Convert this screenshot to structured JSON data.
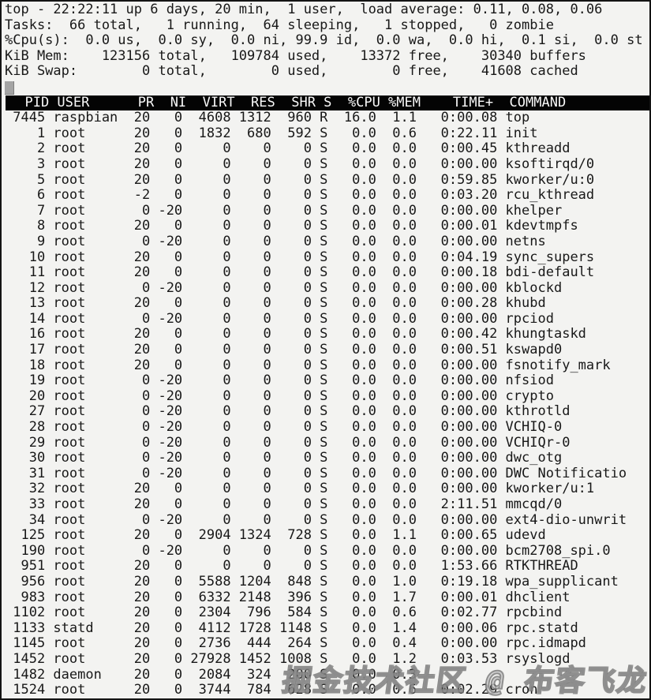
{
  "terminal": {
    "summary_lines": [
      "top - 22:22:11 up 6 days, 20 min,  1 user,  load average: 0.11, 0.08, 0.06",
      "Tasks:  66 total,   1 running,  64 sleeping,   1 stopped,   0 zombie",
      "%Cpu(s):  0.0 us,  0.0 sy,  0.0 ni, 99.9 id,  0.0 wa,  0.0 hi,  0.1 si,  0.0 st",
      "KiB Mem:    123156 total,   109784 used,    13372 free,    30340 buffers",
      "KiB Swap:        0 total,        0 used,        0 free,    41608 cached"
    ],
    "table": {
      "header_line": "  PID USER      PR  NI  VIRT  RES  SHR S  %CPU %MEM    TIME+  COMMAND",
      "columns": [
        "PID",
        "USER",
        "PR",
        "NI",
        "VIRT",
        "RES",
        "SHR",
        "S",
        "%CPU",
        "%MEM",
        "TIME+",
        "COMMAND"
      ],
      "rows": [
        [
          "7445",
          "raspbian",
          "20",
          "0",
          "4608",
          "1312",
          "960",
          "R",
          "16.0",
          "1.1",
          "0:00.08",
          "top"
        ],
        [
          "1",
          "root",
          "20",
          "0",
          "1832",
          "680",
          "592",
          "S",
          "0.0",
          "0.6",
          "0:22.11",
          "init"
        ],
        [
          "2",
          "root",
          "20",
          "0",
          "0",
          "0",
          "0",
          "S",
          "0.0",
          "0.0",
          "0:00.45",
          "kthreadd"
        ],
        [
          "3",
          "root",
          "20",
          "0",
          "0",
          "0",
          "0",
          "S",
          "0.0",
          "0.0",
          "0:00.00",
          "ksoftirqd/0"
        ],
        [
          "5",
          "root",
          "20",
          "0",
          "0",
          "0",
          "0",
          "S",
          "0.0",
          "0.0",
          "0:59.85",
          "kworker/u:0"
        ],
        [
          "6",
          "root",
          "-2",
          "0",
          "0",
          "0",
          "0",
          "S",
          "0.0",
          "0.0",
          "0:03.20",
          "rcu_kthread"
        ],
        [
          "7",
          "root",
          "0",
          "-20",
          "0",
          "0",
          "0",
          "S",
          "0.0",
          "0.0",
          "0:00.00",
          "khelper"
        ],
        [
          "8",
          "root",
          "20",
          "0",
          "0",
          "0",
          "0",
          "S",
          "0.0",
          "0.0",
          "0:00.01",
          "kdevtmpfs"
        ],
        [
          "9",
          "root",
          "0",
          "-20",
          "0",
          "0",
          "0",
          "S",
          "0.0",
          "0.0",
          "0:00.00",
          "netns"
        ],
        [
          "10",
          "root",
          "20",
          "0",
          "0",
          "0",
          "0",
          "S",
          "0.0",
          "0.0",
          "0:04.19",
          "sync_supers"
        ],
        [
          "11",
          "root",
          "20",
          "0",
          "0",
          "0",
          "0",
          "S",
          "0.0",
          "0.0",
          "0:00.18",
          "bdi-default"
        ],
        [
          "12",
          "root",
          "0",
          "-20",
          "0",
          "0",
          "0",
          "S",
          "0.0",
          "0.0",
          "0:00.00",
          "kblockd"
        ],
        [
          "13",
          "root",
          "20",
          "0",
          "0",
          "0",
          "0",
          "S",
          "0.0",
          "0.0",
          "0:00.28",
          "khubd"
        ],
        [
          "14",
          "root",
          "0",
          "-20",
          "0",
          "0",
          "0",
          "S",
          "0.0",
          "0.0",
          "0:00.00",
          "rpciod"
        ],
        [
          "16",
          "root",
          "20",
          "0",
          "0",
          "0",
          "0",
          "S",
          "0.0",
          "0.0",
          "0:00.42",
          "khungtaskd"
        ],
        [
          "17",
          "root",
          "20",
          "0",
          "0",
          "0",
          "0",
          "S",
          "0.0",
          "0.0",
          "0:00.51",
          "kswapd0"
        ],
        [
          "18",
          "root",
          "20",
          "0",
          "0",
          "0",
          "0",
          "S",
          "0.0",
          "0.0",
          "0:00.00",
          "fsnotify_mark"
        ],
        [
          "19",
          "root",
          "0",
          "-20",
          "0",
          "0",
          "0",
          "S",
          "0.0",
          "0.0",
          "0:00.00",
          "nfsiod"
        ],
        [
          "20",
          "root",
          "0",
          "-20",
          "0",
          "0",
          "0",
          "S",
          "0.0",
          "0.0",
          "0:00.00",
          "crypto"
        ],
        [
          "27",
          "root",
          "0",
          "-20",
          "0",
          "0",
          "0",
          "S",
          "0.0",
          "0.0",
          "0:00.00",
          "kthrotld"
        ],
        [
          "28",
          "root",
          "0",
          "-20",
          "0",
          "0",
          "0",
          "S",
          "0.0",
          "0.0",
          "0:00.00",
          "VCHIQ-0"
        ],
        [
          "29",
          "root",
          "0",
          "-20",
          "0",
          "0",
          "0",
          "S",
          "0.0",
          "0.0",
          "0:00.00",
          "VCHIQr-0"
        ],
        [
          "30",
          "root",
          "0",
          "-20",
          "0",
          "0",
          "0",
          "S",
          "0.0",
          "0.0",
          "0:00.00",
          "dwc_otg"
        ],
        [
          "31",
          "root",
          "0",
          "-20",
          "0",
          "0",
          "0",
          "S",
          "0.0",
          "0.0",
          "0:00.00",
          "DWC Notificatio"
        ],
        [
          "32",
          "root",
          "20",
          "0",
          "0",
          "0",
          "0",
          "S",
          "0.0",
          "0.0",
          "0:00.00",
          "kworker/u:1"
        ],
        [
          "33",
          "root",
          "20",
          "0",
          "0",
          "0",
          "0",
          "S",
          "0.0",
          "0.0",
          "2:11.51",
          "mmcqd/0"
        ],
        [
          "34",
          "root",
          "0",
          "-20",
          "0",
          "0",
          "0",
          "S",
          "0.0",
          "0.0",
          "0:00.00",
          "ext4-dio-unwrit"
        ],
        [
          "125",
          "root",
          "20",
          "0",
          "2904",
          "1324",
          "728",
          "S",
          "0.0",
          "1.1",
          "0:00.65",
          "udevd"
        ],
        [
          "190",
          "root",
          "0",
          "-20",
          "0",
          "0",
          "0",
          "S",
          "0.0",
          "0.0",
          "0:00.00",
          "bcm2708_spi.0"
        ],
        [
          "951",
          "root",
          "20",
          "0",
          "0",
          "0",
          "0",
          "S",
          "0.0",
          "0.0",
          "1:53.66",
          "RTKTHREAD"
        ],
        [
          "956",
          "root",
          "20",
          "0",
          "5588",
          "1204",
          "848",
          "S",
          "0.0",
          "1.0",
          "0:19.18",
          "wpa_supplicant"
        ],
        [
          "983",
          "root",
          "20",
          "0",
          "6332",
          "2148",
          "396",
          "S",
          "0.0",
          "1.7",
          "0:00.01",
          "dhclient"
        ],
        [
          "1102",
          "root",
          "20",
          "0",
          "2304",
          "796",
          "584",
          "S",
          "0.0",
          "0.6",
          "0:02.77",
          "rpcbind"
        ],
        [
          "1133",
          "statd",
          "20",
          "0",
          "4112",
          "1728",
          "1148",
          "S",
          "0.0",
          "1.4",
          "0:00.06",
          "rpc.statd"
        ],
        [
          "1145",
          "root",
          "20",
          "0",
          "2736",
          "444",
          "264",
          "S",
          "0.0",
          "0.4",
          "0:00.00",
          "rpc.idmapd"
        ],
        [
          "1452",
          "root",
          "20",
          "0",
          "27928",
          "1452",
          "1008",
          "S",
          "0.0",
          "1.2",
          "0:03.53",
          "rsyslogd"
        ],
        [
          "1482",
          "daemon",
          "20",
          "0",
          "2084",
          "324",
          "200",
          "S",
          "0.0",
          "0.3",
          "",
          ""
        ],
        [
          "1524",
          "root",
          "20",
          "0",
          "3744",
          "784",
          "628",
          "S",
          "0.0",
          "0.6",
          "0:02.29",
          "cron"
        ]
      ]
    }
  },
  "watermark": {
    "text": "掘金技术社区 @ 布客飞龙"
  },
  "colors": {
    "background": "#f3f3f1",
    "text": "#181818",
    "header_bar_bg": "#040404",
    "header_bar_text": "#fafafa",
    "cursor": "#a4a4a4",
    "border": "#141414",
    "watermark": "#9a9a9a"
  }
}
